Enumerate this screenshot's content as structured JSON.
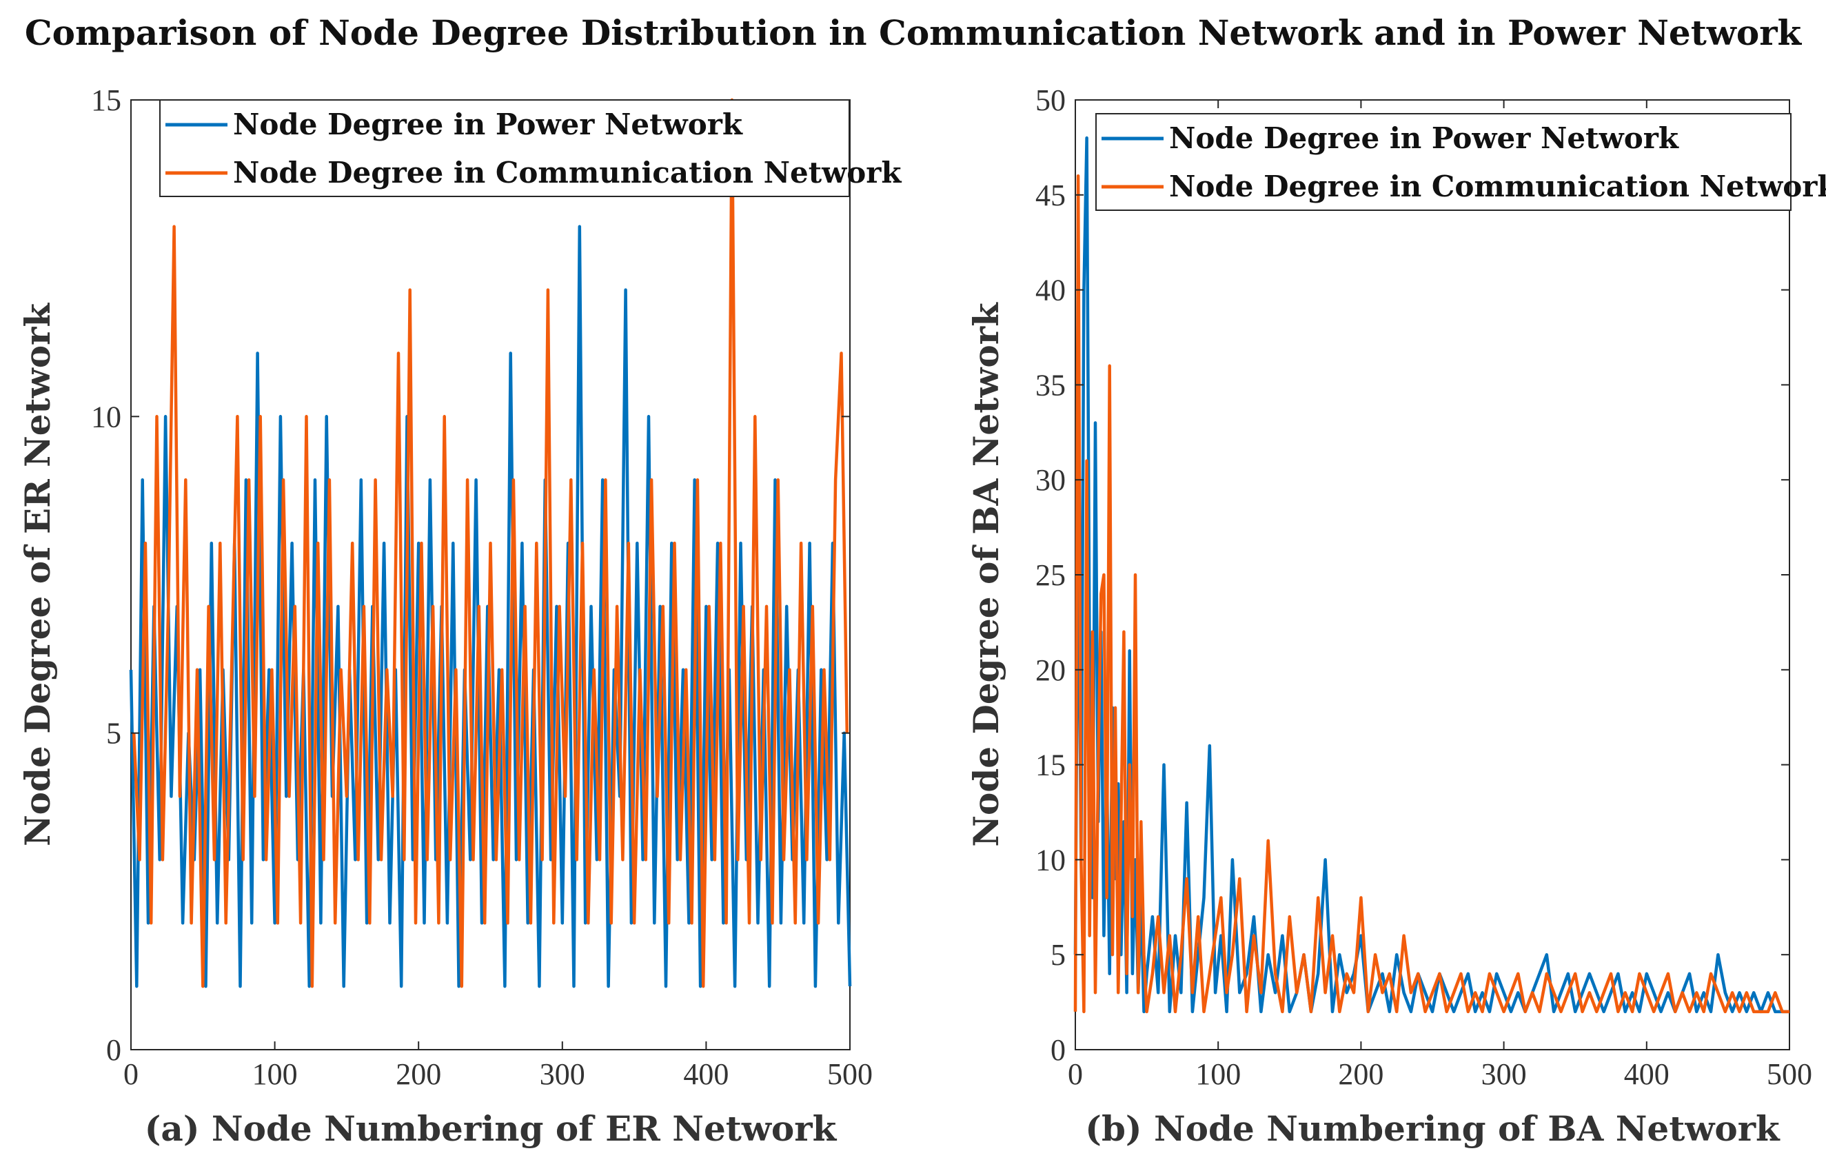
{
  "title": "Comparison of Node Degree Distribution in Communication Network and in Power Network",
  "colors": {
    "power": "#0072BD",
    "communication": "#F25C0C",
    "axis": "#262626"
  },
  "chart_data": [
    {
      "type": "line",
      "panel": "a",
      "xlabel": "(a) Node Numbering of ER Network",
      "ylabel": "Node Degree of ER Network",
      "xlim": [
        0,
        500
      ],
      "ylim": [
        0,
        15
      ],
      "xticks": [
        0,
        100,
        200,
        300,
        400,
        500
      ],
      "yticks": [
        0,
        5,
        10,
        15
      ],
      "legend_position": "top",
      "series": [
        {
          "name": "Node Degree in Power Network",
          "color": "#0072BD",
          "x": [
            0,
            4,
            8,
            12,
            16,
            20,
            24,
            28,
            32,
            36,
            40,
            44,
            48,
            52,
            56,
            60,
            64,
            68,
            72,
            76,
            80,
            84,
            88,
            92,
            96,
            100,
            104,
            108,
            112,
            116,
            120,
            124,
            128,
            132,
            136,
            140,
            144,
            148,
            152,
            156,
            160,
            164,
            168,
            172,
            176,
            180,
            184,
            188,
            192,
            196,
            200,
            204,
            208,
            212,
            216,
            220,
            224,
            228,
            232,
            236,
            240,
            244,
            248,
            252,
            256,
            260,
            264,
            268,
            272,
            276,
            280,
            284,
            288,
            292,
            296,
            300,
            304,
            308,
            312,
            316,
            320,
            324,
            328,
            332,
            336,
            340,
            344,
            348,
            352,
            356,
            360,
            364,
            368,
            372,
            376,
            380,
            384,
            388,
            392,
            396,
            400,
            404,
            408,
            412,
            416,
            420,
            424,
            428,
            432,
            436,
            440,
            444,
            448,
            452,
            456,
            460,
            464,
            468,
            472,
            476,
            480,
            484,
            488,
            492,
            496,
            500
          ],
          "values": [
            6,
            1,
            9,
            2,
            7,
            3,
            10,
            4,
            7,
            2,
            5,
            3,
            6,
            1,
            8,
            2,
            6,
            3,
            8,
            1,
            9,
            2,
            11,
            3,
            6,
            2,
            10,
            4,
            8,
            3,
            6,
            1,
            9,
            2,
            10,
            4,
            7,
            1,
            6,
            3,
            9,
            2,
            7,
            3,
            8,
            2,
            6,
            1,
            10,
            3,
            8,
            2,
            9,
            3,
            7,
            2,
            8,
            1,
            6,
            3,
            9,
            2,
            7,
            3,
            6,
            1,
            11,
            3,
            8,
            2,
            6,
            1,
            9,
            3,
            7,
            2,
            8,
            1,
            13,
            2,
            7,
            3,
            9,
            1,
            6,
            4,
            12,
            2,
            8,
            3,
            10,
            2,
            7,
            1,
            8,
            3,
            6,
            2,
            9,
            1,
            7,
            3,
            8,
            2,
            6,
            1,
            8,
            3,
            7,
            2,
            6,
            1,
            9,
            2,
            7,
            3,
            6,
            2,
            8,
            1,
            6,
            3,
            8,
            2,
            5,
            1
          ]
        },
        {
          "name": "Node Degree in Communication Network",
          "color": "#F25C0C",
          "x": [
            2,
            6,
            10,
            14,
            18,
            22,
            26,
            30,
            34,
            38,
            42,
            46,
            50,
            54,
            58,
            62,
            66,
            70,
            74,
            78,
            82,
            86,
            90,
            94,
            98,
            102,
            106,
            110,
            114,
            118,
            122,
            126,
            130,
            134,
            138,
            142,
            146,
            150,
            154,
            158,
            162,
            166,
            170,
            174,
            178,
            182,
            186,
            190,
            194,
            198,
            202,
            206,
            210,
            214,
            218,
            222,
            226,
            230,
            234,
            238,
            242,
            246,
            250,
            254,
            258,
            262,
            266,
            270,
            274,
            278,
            282,
            286,
            290,
            294,
            298,
            302,
            306,
            310,
            314,
            318,
            322,
            326,
            330,
            334,
            338,
            342,
            346,
            350,
            354,
            358,
            362,
            366,
            370,
            374,
            378,
            382,
            386,
            390,
            394,
            398,
            402,
            406,
            410,
            414,
            418,
            422,
            426,
            430,
            434,
            438,
            442,
            446,
            450,
            454,
            458,
            462,
            466,
            470,
            474,
            478,
            482,
            486,
            490,
            494,
            498
          ],
          "values": [
            5,
            3,
            8,
            2,
            10,
            3,
            7,
            13,
            4,
            9,
            2,
            6,
            1,
            7,
            3,
            8,
            2,
            6,
            10,
            3,
            9,
            4,
            10,
            3,
            6,
            2,
            9,
            4,
            7,
            2,
            10,
            1,
            8,
            3,
            9,
            2,
            6,
            4,
            8,
            3,
            7,
            2,
            9,
            3,
            6,
            4,
            11,
            3,
            12,
            2,
            8,
            3,
            7,
            2,
            10,
            3,
            6,
            1,
            9,
            3,
            7,
            2,
            8,
            3,
            6,
            2,
            9,
            3,
            7,
            2,
            8,
            3,
            12,
            2,
            7,
            4,
            9,
            3,
            8,
            2,
            6,
            3,
            9,
            2,
            7,
            3,
            8,
            2,
            6,
            3,
            9,
            4,
            7,
            2,
            8,
            3,
            6,
            2,
            9,
            1,
            7,
            3,
            8,
            2,
            15,
            3,
            7,
            2,
            10,
            3,
            7,
            2,
            9,
            3,
            6,
            2,
            8,
            3,
            7,
            2,
            6,
            3,
            9,
            11,
            5
          ]
        }
      ]
    },
    {
      "type": "line",
      "panel": "b",
      "xlabel": "(b) Node Numbering of BA Network",
      "ylabel": "Node Degree of BA Network",
      "xlim": [
        0,
        500
      ],
      "ylim": [
        0,
        50
      ],
      "xticks": [
        0,
        100,
        200,
        300,
        400,
        500
      ],
      "yticks": [
        0,
        5,
        10,
        15,
        20,
        25,
        30,
        35,
        40,
        45,
        50
      ],
      "legend_position": "top",
      "series": [
        {
          "name": "Node Degree in Power Network",
          "color": "#0072BD",
          "x": [
            0,
            2,
            4,
            6,
            8,
            10,
            12,
            14,
            16,
            18,
            20,
            22,
            24,
            26,
            28,
            30,
            32,
            34,
            36,
            38,
            40,
            42,
            44,
            46,
            48,
            50,
            54,
            58,
            62,
            66,
            70,
            74,
            78,
            82,
            86,
            90,
            94,
            98,
            102,
            106,
            110,
            115,
            120,
            125,
            130,
            135,
            140,
            145,
            150,
            155,
            160,
            165,
            170,
            175,
            180,
            185,
            190,
            195,
            200,
            205,
            210,
            215,
            220,
            225,
            230,
            235,
            240,
            245,
            250,
            255,
            260,
            265,
            270,
            275,
            280,
            285,
            290,
            295,
            300,
            305,
            310,
            315,
            320,
            325,
            330,
            335,
            340,
            345,
            350,
            355,
            360,
            365,
            370,
            375,
            380,
            385,
            390,
            395,
            400,
            405,
            410,
            415,
            420,
            425,
            430,
            435,
            440,
            445,
            450,
            455,
            460,
            465,
            470,
            475,
            480,
            485,
            490,
            495,
            500
          ],
          "values": [
            5,
            29,
            10,
            40,
            48,
            20,
            8,
            33,
            12,
            22,
            6,
            15,
            4,
            18,
            9,
            14,
            5,
            12,
            3,
            21,
            4,
            10,
            3,
            8,
            2,
            4,
            7,
            3,
            15,
            2,
            6,
            3,
            13,
            2,
            5,
            8,
            16,
            3,
            6,
            2,
            10,
            3,
            4,
            7,
            2,
            5,
            3,
            6,
            2,
            3,
            5,
            2,
            4,
            10,
            2,
            5,
            3,
            4,
            6,
            2,
            3,
            4,
            2,
            5,
            3,
            2,
            4,
            3,
            2,
            4,
            3,
            2,
            3,
            4,
            2,
            3,
            2,
            4,
            3,
            2,
            3,
            2,
            3,
            4,
            5,
            2,
            3,
            4,
            2,
            3,
            4,
            3,
            2,
            3,
            4,
            2,
            3,
            2,
            4,
            3,
            2,
            3,
            2,
            3,
            4,
            2,
            3,
            2,
            5,
            3,
            2,
            3,
            2,
            3,
            2,
            3,
            2,
            2,
            2
          ]
        },
        {
          "name": "Node Degree in Communication Network",
          "color": "#F25C0C",
          "x": [
            0,
            2,
            4,
            6,
            8,
            10,
            12,
            14,
            16,
            18,
            20,
            22,
            24,
            26,
            28,
            30,
            32,
            34,
            36,
            38,
            40,
            42,
            44,
            46,
            48,
            50,
            54,
            58,
            62,
            66,
            70,
            74,
            78,
            82,
            86,
            90,
            94,
            98,
            102,
            106,
            110,
            115,
            120,
            125,
            130,
            135,
            140,
            145,
            150,
            155,
            160,
            165,
            170,
            175,
            180,
            185,
            190,
            195,
            200,
            205,
            210,
            215,
            220,
            225,
            230,
            235,
            240,
            245,
            250,
            255,
            260,
            265,
            270,
            275,
            280,
            285,
            290,
            295,
            300,
            305,
            310,
            315,
            320,
            325,
            330,
            335,
            340,
            345,
            350,
            355,
            360,
            365,
            370,
            375,
            380,
            385,
            390,
            395,
            400,
            405,
            410,
            415,
            420,
            425,
            430,
            435,
            440,
            445,
            450,
            455,
            460,
            465,
            470,
            475,
            480,
            485,
            490,
            495,
            500
          ],
          "values": [
            2,
            46,
            10,
            2,
            31,
            6,
            22,
            3,
            15,
            24,
            25,
            8,
            36,
            5,
            18,
            3,
            12,
            22,
            4,
            15,
            7,
            25,
            3,
            12,
            5,
            2,
            4,
            7,
            3,
            6,
            2,
            5,
            9,
            3,
            7,
            2,
            4,
            6,
            8,
            3,
            5,
            9,
            2,
            6,
            3,
            11,
            4,
            2,
            7,
            3,
            5,
            2,
            8,
            3,
            6,
            2,
            4,
            3,
            8,
            2,
            5,
            3,
            4,
            2,
            6,
            3,
            4,
            2,
            3,
            4,
            2,
            3,
            4,
            2,
            3,
            2,
            4,
            3,
            2,
            3,
            4,
            2,
            3,
            2,
            4,
            3,
            2,
            3,
            4,
            2,
            3,
            2,
            3,
            4,
            2,
            3,
            2,
            4,
            3,
            2,
            3,
            4,
            2,
            3,
            2,
            3,
            2,
            4,
            3,
            2,
            3,
            2,
            3,
            2,
            2,
            2,
            3,
            2,
            2
          ]
        }
      ]
    }
  ]
}
